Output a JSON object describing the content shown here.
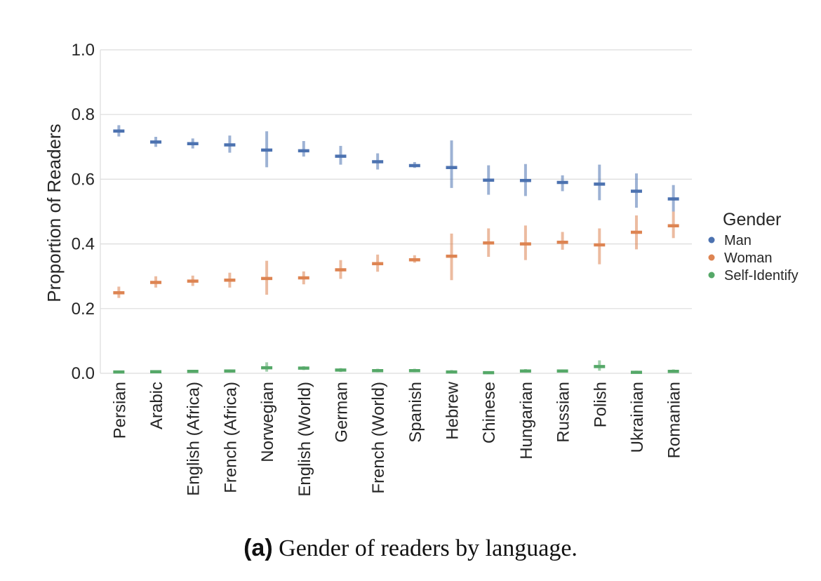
{
  "chart_data": {
    "type": "scatter",
    "ylabel": "Proportion of Readers",
    "xlabel": "",
    "ylim": [
      0,
      1.0
    ],
    "yticks": [
      "0.0",
      "0.2",
      "0.4",
      "0.6",
      "0.8",
      "1.0"
    ],
    "grid": "horizontal",
    "legend": {
      "title": "Gender",
      "placement": "right"
    },
    "categories": [
      "Persian",
      "Arabic",
      "English (Africa)",
      "French (Africa)",
      "Norwegian",
      "English (World)",
      "German",
      "French (World)",
      "Spanish",
      "Hebrew",
      "Chinese",
      "Hungarian",
      "Russian",
      "Polish",
      "Ukrainian",
      "Romanian"
    ],
    "series": [
      {
        "name": "Man",
        "color": "#4c72b0",
        "values": [
          0.749,
          0.715,
          0.71,
          0.706,
          0.69,
          0.688,
          0.671,
          0.654,
          0.642,
          0.636,
          0.597,
          0.596,
          0.59,
          0.585,
          0.563,
          0.539
        ],
        "ci_low": [
          0.732,
          0.7,
          0.695,
          0.682,
          0.637,
          0.67,
          0.645,
          0.63,
          0.635,
          0.573,
          0.552,
          0.548,
          0.563,
          0.535,
          0.512,
          0.5
        ],
        "ci_high": [
          0.767,
          0.731,
          0.726,
          0.735,
          0.748,
          0.718,
          0.703,
          0.68,
          0.653,
          0.72,
          0.643,
          0.647,
          0.612,
          0.645,
          0.618,
          0.582
        ]
      },
      {
        "name": "Woman",
        "color": "#dd8452",
        "values": [
          0.249,
          0.281,
          0.285,
          0.288,
          0.293,
          0.295,
          0.32,
          0.339,
          0.351,
          0.362,
          0.403,
          0.4,
          0.405,
          0.397,
          0.436,
          0.456
        ],
        "ci_low": [
          0.233,
          0.265,
          0.27,
          0.265,
          0.243,
          0.275,
          0.292,
          0.314,
          0.342,
          0.288,
          0.36,
          0.35,
          0.382,
          0.337,
          0.383,
          0.418
        ],
        "ci_high": [
          0.268,
          0.3,
          0.302,
          0.311,
          0.348,
          0.315,
          0.35,
          0.367,
          0.365,
          0.432,
          0.448,
          0.457,
          0.437,
          0.448,
          0.488,
          0.5
        ]
      },
      {
        "name": "Self-Identify",
        "color": "#55a868",
        "values": [
          0.004,
          0.005,
          0.006,
          0.007,
          0.017,
          0.016,
          0.01,
          0.008,
          0.008,
          0.004,
          0.002,
          0.007,
          0.007,
          0.021,
          0.003,
          0.006
        ],
        "ci_low": [
          0.001,
          0.002,
          0.002,
          0.002,
          0.005,
          0.01,
          0.004,
          0.003,
          0.003,
          0.0,
          0.0,
          0.002,
          0.003,
          0.008,
          0.0,
          0.002
        ],
        "ci_high": [
          0.008,
          0.009,
          0.01,
          0.012,
          0.034,
          0.022,
          0.016,
          0.014,
          0.014,
          0.01,
          0.006,
          0.013,
          0.012,
          0.04,
          0.008,
          0.012
        ]
      }
    ]
  },
  "caption": {
    "tag": "(a)",
    "text": "Gender of readers by language."
  }
}
